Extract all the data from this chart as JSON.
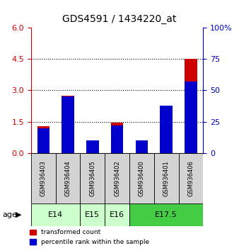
{
  "title": "GDS4591 / 1434220_at",
  "samples": [
    "GSM936403",
    "GSM936404",
    "GSM936405",
    "GSM936402",
    "GSM936400",
    "GSM936401",
    "GSM936406"
  ],
  "transformed_count": [
    1.3,
    2.75,
    0.2,
    1.45,
    0.12,
    1.5,
    4.5
  ],
  "percentile_rank": [
    20,
    45,
    10,
    22,
    10,
    38,
    57
  ],
  "ylim_left": [
    0,
    6
  ],
  "ylim_right": [
    0,
    100
  ],
  "yticks_left": [
    0,
    1.5,
    3,
    4.5,
    6
  ],
  "yticks_right": [
    0,
    25,
    50,
    75,
    100
  ],
  "bar_color_red": "#cc0000",
  "bar_color_blue": "#0000cc",
  "bar_width": 0.5,
  "groups": [
    {
      "label": "E14",
      "samples": [
        "GSM936403",
        "GSM936404"
      ],
      "color": "#ccffcc"
    },
    {
      "label": "E15",
      "samples": [
        "GSM936405"
      ],
      "color": "#ccffcc"
    },
    {
      "label": "E16",
      "samples": [
        "GSM936402"
      ],
      "color": "#ccffcc"
    },
    {
      "label": "E17.5",
      "samples": [
        "GSM936400",
        "GSM936401",
        "GSM936406"
      ],
      "color": "#44cc44"
    }
  ],
  "age_label": "age",
  "legend_red": "transformed count",
  "legend_blue": "percentile rank within the sample",
  "axis_color_left": "#cc0000",
  "axis_color_right": "#0000cc",
  "grid_ticks": [
    1.5,
    3.0,
    4.5
  ]
}
